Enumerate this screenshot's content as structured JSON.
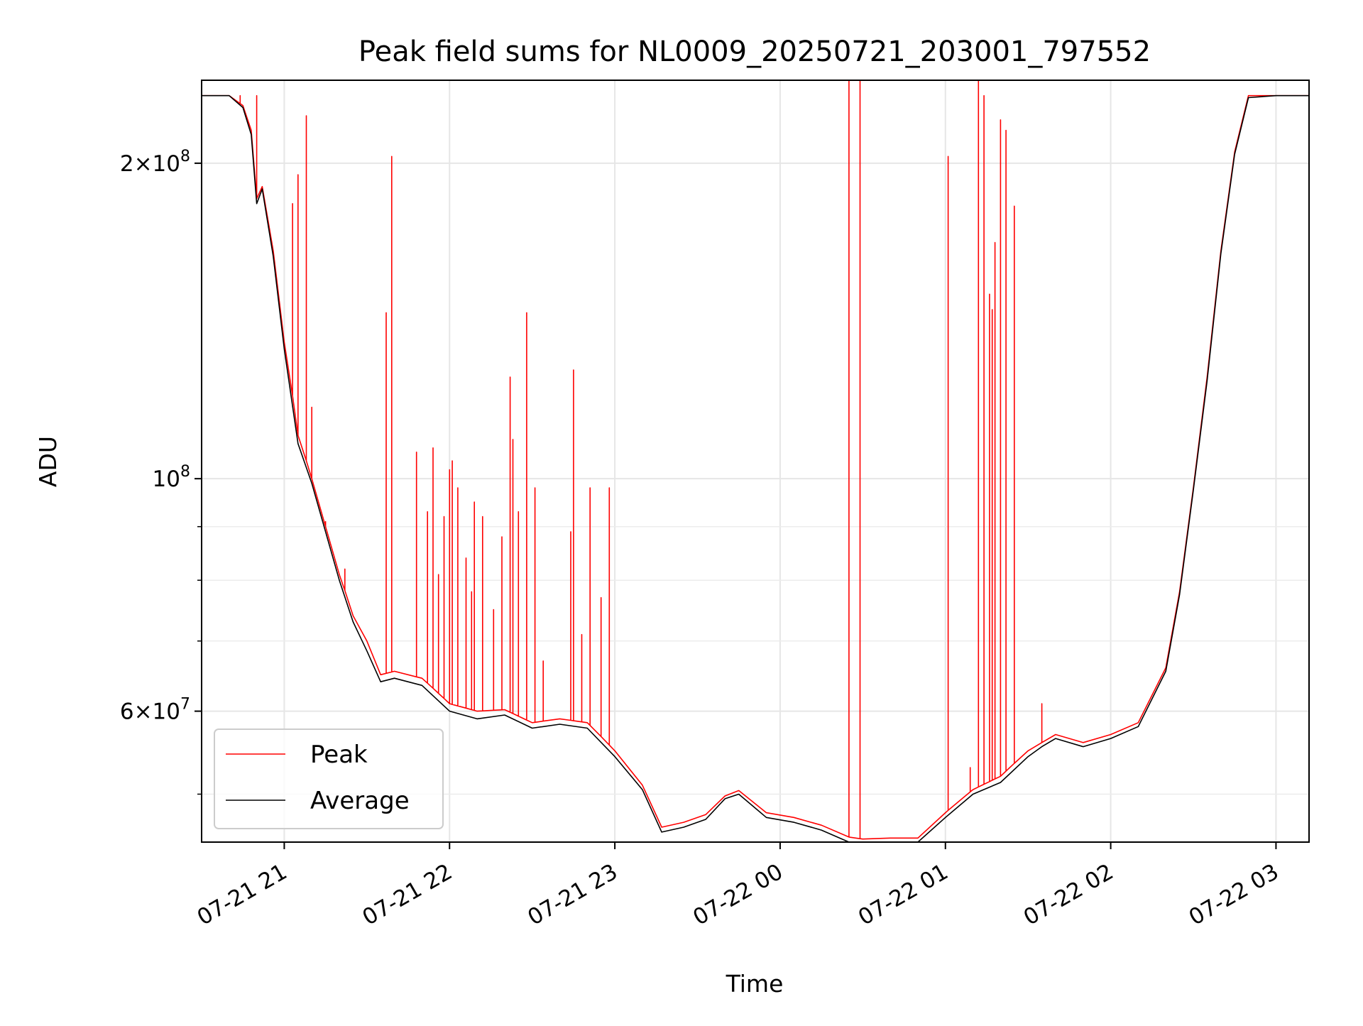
{
  "chart_data": {
    "type": "line",
    "title": "Peak field sums for NL0009_20250721_203001_797552",
    "xlabel": "Time",
    "ylabel": "ADU",
    "y_scale": "log",
    "ylim": [
      45000000,
      240000000
    ],
    "xlim": [
      "2025-07-21 20:30",
      "2025-07-22 03:12"
    ],
    "grid": true,
    "legend": {
      "position": "lower-left"
    },
    "x_ticks": [
      {
        "time": "2025-07-21 21:00",
        "label": "07-21 21"
      },
      {
        "time": "2025-07-21 22:00",
        "label": "07-21 22"
      },
      {
        "time": "2025-07-21 23:00",
        "label": "07-21 23"
      },
      {
        "time": "2025-07-22 00:00",
        "label": "07-22 00"
      },
      {
        "time": "2025-07-22 01:00",
        "label": "07-22 01"
      },
      {
        "time": "2025-07-22 02:00",
        "label": "07-22 02"
      },
      {
        "time": "2025-07-22 03:00",
        "label": "07-22 03"
      }
    ],
    "y_major_ticks": [
      {
        "value": 60000000,
        "mantissa": "6",
        "power": "7"
      },
      {
        "value": 100000000,
        "mantissa": "",
        "power": "8"
      },
      {
        "value": 200000000,
        "mantissa": "2",
        "power": "8"
      }
    ],
    "y_minor_ticks": [
      50000000,
      70000000,
      80000000,
      90000000
    ],
    "series": [
      {
        "name": "Peak",
        "color": "#ff0000",
        "x": [
          "2025-07-21 20:30",
          "2025-07-21 20:40",
          "2025-07-21 20:45",
          "2025-07-21 20:48",
          "2025-07-21 20:50",
          "2025-07-21 20:52",
          "2025-07-21 20:56",
          "2025-07-21 21:00",
          "2025-07-21 21:05",
          "2025-07-21 21:10",
          "2025-07-21 21:15",
          "2025-07-21 21:20",
          "2025-07-21 21:25",
          "2025-07-21 21:30",
          "2025-07-21 21:35",
          "2025-07-21 21:40",
          "2025-07-21 21:50",
          "2025-07-21 22:00",
          "2025-07-21 22:10",
          "2025-07-21 22:20",
          "2025-07-21 22:30",
          "2025-07-21 22:40",
          "2025-07-21 22:50",
          "2025-07-21 23:00",
          "2025-07-21 23:10",
          "2025-07-21 23:17",
          "2025-07-21 23:25",
          "2025-07-21 23:33",
          "2025-07-21 23:40",
          "2025-07-21 23:45",
          "2025-07-21 23:55",
          "2025-07-22 00:05",
          "2025-07-22 00:15",
          "2025-07-22 00:25",
          "2025-07-22 00:30",
          "2025-07-22 00:40",
          "2025-07-22 00:50",
          "2025-07-22 01:00",
          "2025-07-22 01:10",
          "2025-07-22 01:20",
          "2025-07-22 01:30",
          "2025-07-22 01:35",
          "2025-07-22 01:40",
          "2025-07-22 01:50",
          "2025-07-22 02:00",
          "2025-07-22 02:10",
          "2025-07-22 02:20",
          "2025-07-22 02:25",
          "2025-07-22 02:30",
          "2025-07-22 02:35",
          "2025-07-22 02:40",
          "2025-07-22 02:45",
          "2025-07-22 02:50",
          "2025-07-22 03:00",
          "2025-07-22 03:12"
        ],
        "values": [
          232000000,
          232000000,
          227000000,
          215000000,
          185000000,
          190000000,
          165000000,
          135000000,
          110000000,
          100000000,
          90000000,
          81000000,
          74000000,
          70000000,
          65000000,
          65500000,
          64500000,
          61000000,
          60000000,
          60200000,
          58500000,
          59000000,
          58500000,
          55000000,
          51000000,
          46500000,
          47000000,
          47800000,
          49800000,
          50400000,
          48000000,
          47500000,
          46700000,
          45500000,
          45300000,
          45400000,
          45400000,
          48000000,
          50500000,
          52000000,
          55000000,
          56000000,
          57000000,
          56000000,
          57000000,
          58500000,
          66000000,
          78000000,
          98000000,
          125000000,
          165000000,
          205000000,
          232000000,
          232000000,
          232000000
        ],
        "spikes": [
          {
            "x": "2025-07-21 20:44",
            "y": 232000000
          },
          {
            "x": "2025-07-21 20:50",
            "y": 232000000
          },
          {
            "x": "2025-07-21 21:03",
            "y": 183000000
          },
          {
            "x": "2025-07-21 21:05",
            "y": 195000000
          },
          {
            "x": "2025-07-21 21:08",
            "y": 222000000
          },
          {
            "x": "2025-07-21 21:10",
            "y": 117000000
          },
          {
            "x": "2025-07-21 21:15",
            "y": 91000000
          },
          {
            "x": "2025-07-21 21:22",
            "y": 82000000
          },
          {
            "x": "2025-07-21 21:37",
            "y": 144000000
          },
          {
            "x": "2025-07-21 21:39",
            "y": 203000000
          },
          {
            "x": "2025-07-21 21:48",
            "y": 106000000
          },
          {
            "x": "2025-07-21 21:52",
            "y": 93000000
          },
          {
            "x": "2025-07-21 21:54",
            "y": 107000000
          },
          {
            "x": "2025-07-21 21:56",
            "y": 81000000
          },
          {
            "x": "2025-07-21 21:58",
            "y": 92000000
          },
          {
            "x": "2025-07-21 22:00",
            "y": 102000000
          },
          {
            "x": "2025-07-21 22:01",
            "y": 104000000
          },
          {
            "x": "2025-07-21 22:03",
            "y": 98000000
          },
          {
            "x": "2025-07-21 22:06",
            "y": 84000000
          },
          {
            "x": "2025-07-21 22:08",
            "y": 78000000
          },
          {
            "x": "2025-07-21 22:09",
            "y": 95000000
          },
          {
            "x": "2025-07-21 22:12",
            "y": 92000000
          },
          {
            "x": "2025-07-21 22:16",
            "y": 75000000
          },
          {
            "x": "2025-07-21 22:19",
            "y": 88000000
          },
          {
            "x": "2025-07-21 22:22",
            "y": 125000000
          },
          {
            "x": "2025-07-21 22:23",
            "y": 109000000
          },
          {
            "x": "2025-07-21 22:25",
            "y": 93000000
          },
          {
            "x": "2025-07-21 22:28",
            "y": 144000000
          },
          {
            "x": "2025-07-21 22:31",
            "y": 98000000
          },
          {
            "x": "2025-07-21 22:34",
            "y": 67000000
          },
          {
            "x": "2025-07-21 22:44",
            "y": 89000000
          },
          {
            "x": "2025-07-21 22:45",
            "y": 127000000
          },
          {
            "x": "2025-07-21 22:48",
            "y": 71000000
          },
          {
            "x": "2025-07-21 22:51",
            "y": 98000000
          },
          {
            "x": "2025-07-21 22:55",
            "y": 77000000
          },
          {
            "x": "2025-07-21 22:58",
            "y": 98000000
          },
          {
            "x": "2025-07-22 00:25",
            "y": 240000000
          },
          {
            "x": "2025-07-22 00:29",
            "y": 240000000
          },
          {
            "x": "2025-07-22 01:01",
            "y": 203000000
          },
          {
            "x": "2025-07-22 01:09",
            "y": 53000000
          },
          {
            "x": "2025-07-22 01:12",
            "y": 240000000
          },
          {
            "x": "2025-07-22 01:14",
            "y": 232000000
          },
          {
            "x": "2025-07-22 01:16",
            "y": 150000000
          },
          {
            "x": "2025-07-22 01:17",
            "y": 145000000
          },
          {
            "x": "2025-07-22 01:18",
            "y": 168000000
          },
          {
            "x": "2025-07-22 01:20",
            "y": 220000000
          },
          {
            "x": "2025-07-22 01:22",
            "y": 215000000
          },
          {
            "x": "2025-07-22 01:25",
            "y": 182000000
          },
          {
            "x": "2025-07-22 01:35",
            "y": 61000000
          }
        ]
      },
      {
        "name": "Average",
        "color": "#000000",
        "x": [
          "2025-07-21 20:30",
          "2025-07-21 20:40",
          "2025-07-21 20:45",
          "2025-07-21 20:48",
          "2025-07-21 20:50",
          "2025-07-21 20:52",
          "2025-07-21 20:56",
          "2025-07-21 21:00",
          "2025-07-21 21:05",
          "2025-07-21 21:10",
          "2025-07-21 21:15",
          "2025-07-21 21:20",
          "2025-07-21 21:25",
          "2025-07-21 21:30",
          "2025-07-21 21:35",
          "2025-07-21 21:40",
          "2025-07-21 21:50",
          "2025-07-21 22:00",
          "2025-07-21 22:10",
          "2025-07-21 22:20",
          "2025-07-21 22:30",
          "2025-07-21 22:40",
          "2025-07-21 22:50",
          "2025-07-21 23:00",
          "2025-07-21 23:10",
          "2025-07-21 23:17",
          "2025-07-21 23:25",
          "2025-07-21 23:33",
          "2025-07-21 23:40",
          "2025-07-21 23:45",
          "2025-07-21 23:55",
          "2025-07-22 00:05",
          "2025-07-22 00:15",
          "2025-07-22 00:25",
          "2025-07-22 00:30",
          "2025-07-22 00:40",
          "2025-07-22 00:50",
          "2025-07-22 01:00",
          "2025-07-22 01:10",
          "2025-07-22 01:20",
          "2025-07-22 01:30",
          "2025-07-22 01:35",
          "2025-07-22 01:40",
          "2025-07-22 01:50",
          "2025-07-22 02:00",
          "2025-07-22 02:10",
          "2025-07-22 02:20",
          "2025-07-22 02:25",
          "2025-07-22 02:30",
          "2025-07-22 02:35",
          "2025-07-22 02:40",
          "2025-07-22 02:45",
          "2025-07-22 02:50",
          "2025-07-22 03:00",
          "2025-07-22 03:12"
        ],
        "values": [
          232000000,
          232000000,
          226000000,
          213000000,
          183000000,
          189000000,
          163000000,
          133000000,
          108000000,
          99000000,
          89000000,
          80000000,
          73000000,
          68500000,
          64000000,
          64500000,
          63500000,
          60000000,
          59000000,
          59500000,
          57800000,
          58300000,
          57800000,
          54300000,
          50500000,
          46000000,
          46500000,
          47300000,
          49500000,
          50000000,
          47500000,
          47000000,
          46200000,
          45000000,
          44800000,
          44900000,
          44900000,
          47500000,
          50000000,
          51300000,
          54300000,
          55500000,
          56500000,
          55500000,
          56500000,
          58000000,
          65500000,
          77500000,
          97500000,
          124000000,
          164000000,
          204000000,
          231000000,
          232000000,
          232000000
        ]
      }
    ]
  }
}
